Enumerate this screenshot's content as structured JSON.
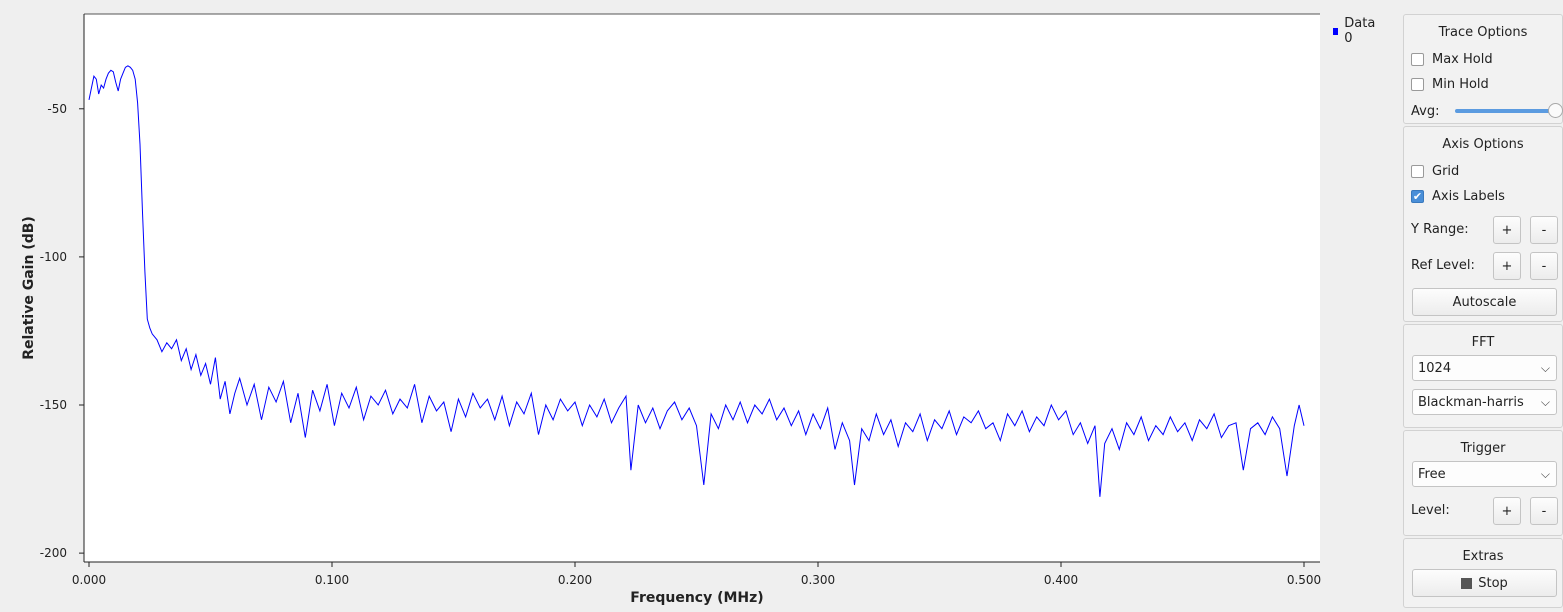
{
  "legend": {
    "label": "Data 0",
    "color": "#0000ff"
  },
  "chart_data": {
    "type": "line",
    "title": "",
    "xlabel": "Frequency (MHz)",
    "ylabel": "Relative Gain (dB)",
    "xlim": [
      0.0,
      0.5
    ],
    "ylim": [
      -203,
      -18
    ],
    "xticks": [
      "0.000",
      "0.100",
      "0.200",
      "0.300",
      "0.400",
      "0.500"
    ],
    "yticks": [
      "-50",
      "-100",
      "-150",
      "-200"
    ],
    "grid": false,
    "series": [
      {
        "name": "Data 0",
        "color": "#0000ff",
        "points": [
          [
            0.0,
            -47
          ],
          [
            0.001,
            -43
          ],
          [
            0.002,
            -39
          ],
          [
            0.003,
            -40
          ],
          [
            0.004,
            -45
          ],
          [
            0.005,
            -42
          ],
          [
            0.006,
            -43
          ],
          [
            0.007,
            -40
          ],
          [
            0.008,
            -38
          ],
          [
            0.009,
            -37
          ],
          [
            0.01,
            -37.5
          ],
          [
            0.011,
            -41
          ],
          [
            0.012,
            -44
          ],
          [
            0.013,
            -40
          ],
          [
            0.014,
            -38
          ],
          [
            0.015,
            -36
          ],
          [
            0.016,
            -35.5
          ],
          [
            0.017,
            -36
          ],
          [
            0.018,
            -37
          ],
          [
            0.019,
            -40
          ],
          [
            0.02,
            -48
          ],
          [
            0.021,
            -62
          ],
          [
            0.022,
            -85
          ],
          [
            0.023,
            -105
          ],
          [
            0.024,
            -121
          ],
          [
            0.025,
            -124
          ],
          [
            0.026,
            -126
          ],
          [
            0.028,
            -128
          ],
          [
            0.03,
            -132
          ],
          [
            0.032,
            -129
          ],
          [
            0.034,
            -131
          ],
          [
            0.036,
            -128
          ],
          [
            0.038,
            -135
          ],
          [
            0.04,
            -131
          ],
          [
            0.042,
            -138
          ],
          [
            0.044,
            -133
          ],
          [
            0.046,
            -140
          ],
          [
            0.048,
            -136
          ],
          [
            0.05,
            -143
          ],
          [
            0.052,
            -134
          ],
          [
            0.054,
            -148
          ],
          [
            0.056,
            -142
          ],
          [
            0.058,
            -153
          ],
          [
            0.06,
            -146
          ],
          [
            0.062,
            -141
          ],
          [
            0.065,
            -150
          ],
          [
            0.068,
            -143
          ],
          [
            0.071,
            -155
          ],
          [
            0.074,
            -144
          ],
          [
            0.077,
            -149
          ],
          [
            0.08,
            -142
          ],
          [
            0.083,
            -156
          ],
          [
            0.086,
            -146
          ],
          [
            0.089,
            -161
          ],
          [
            0.092,
            -145
          ],
          [
            0.095,
            -152
          ],
          [
            0.098,
            -143
          ],
          [
            0.101,
            -157
          ],
          [
            0.104,
            -146
          ],
          [
            0.107,
            -151
          ],
          [
            0.11,
            -144
          ],
          [
            0.113,
            -155
          ],
          [
            0.116,
            -147
          ],
          [
            0.119,
            -150
          ],
          [
            0.122,
            -145
          ],
          [
            0.125,
            -153
          ],
          [
            0.128,
            -148
          ],
          [
            0.131,
            -151
          ],
          [
            0.134,
            -143
          ],
          [
            0.137,
            -156
          ],
          [
            0.14,
            -147
          ],
          [
            0.143,
            -152
          ],
          [
            0.146,
            -149
          ],
          [
            0.149,
            -159
          ],
          [
            0.152,
            -148
          ],
          [
            0.155,
            -154
          ],
          [
            0.158,
            -146
          ],
          [
            0.161,
            -151
          ],
          [
            0.164,
            -148
          ],
          [
            0.167,
            -155
          ],
          [
            0.17,
            -147
          ],
          [
            0.173,
            -157
          ],
          [
            0.176,
            -149
          ],
          [
            0.179,
            -153
          ],
          [
            0.182,
            -146
          ],
          [
            0.185,
            -160
          ],
          [
            0.188,
            -150
          ],
          [
            0.191,
            -155
          ],
          [
            0.194,
            -148
          ],
          [
            0.197,
            -152
          ],
          [
            0.2,
            -149
          ],
          [
            0.203,
            -157
          ],
          [
            0.206,
            -150
          ],
          [
            0.209,
            -154
          ],
          [
            0.212,
            -148
          ],
          [
            0.215,
            -156
          ],
          [
            0.218,
            -151
          ],
          [
            0.221,
            -147
          ],
          [
            0.223,
            -172
          ],
          [
            0.226,
            -150
          ],
          [
            0.229,
            -156
          ],
          [
            0.232,
            -151
          ],
          [
            0.235,
            -158
          ],
          [
            0.238,
            -152
          ],
          [
            0.241,
            -149
          ],
          [
            0.244,
            -155
          ],
          [
            0.247,
            -151
          ],
          [
            0.25,
            -157
          ],
          [
            0.253,
            -177
          ],
          [
            0.256,
            -153
          ],
          [
            0.259,
            -158
          ],
          [
            0.262,
            -150
          ],
          [
            0.265,
            -155
          ],
          [
            0.268,
            -149
          ],
          [
            0.271,
            -156
          ],
          [
            0.274,
            -150
          ],
          [
            0.277,
            -153
          ],
          [
            0.28,
            -148
          ],
          [
            0.283,
            -155
          ],
          [
            0.286,
            -151
          ],
          [
            0.289,
            -157
          ],
          [
            0.292,
            -152
          ],
          [
            0.295,
            -160
          ],
          [
            0.298,
            -153
          ],
          [
            0.301,
            -158
          ],
          [
            0.304,
            -151
          ],
          [
            0.307,
            -165
          ],
          [
            0.31,
            -156
          ],
          [
            0.313,
            -162
          ],
          [
            0.315,
            -177
          ],
          [
            0.318,
            -158
          ],
          [
            0.321,
            -162
          ],
          [
            0.324,
            -153
          ],
          [
            0.327,
            -160
          ],
          [
            0.33,
            -155
          ],
          [
            0.333,
            -164
          ],
          [
            0.336,
            -156
          ],
          [
            0.339,
            -159
          ],
          [
            0.342,
            -153
          ],
          [
            0.345,
            -162
          ],
          [
            0.348,
            -155
          ],
          [
            0.351,
            -158
          ],
          [
            0.354,
            -152
          ],
          [
            0.357,
            -160
          ],
          [
            0.36,
            -154
          ],
          [
            0.363,
            -156
          ],
          [
            0.366,
            -152
          ],
          [
            0.369,
            -158
          ],
          [
            0.372,
            -156
          ],
          [
            0.375,
            -162
          ],
          [
            0.378,
            -153
          ],
          [
            0.381,
            -157
          ],
          [
            0.384,
            -152
          ],
          [
            0.387,
            -159
          ],
          [
            0.39,
            -154
          ],
          [
            0.393,
            -157
          ],
          [
            0.396,
            -150
          ],
          [
            0.399,
            -155
          ],
          [
            0.402,
            -152
          ],
          [
            0.405,
            -160
          ],
          [
            0.408,
            -156
          ],
          [
            0.411,
            -163
          ],
          [
            0.414,
            -157
          ],
          [
            0.416,
            -181
          ],
          [
            0.418,
            -163
          ],
          [
            0.421,
            -158
          ],
          [
            0.424,
            -165
          ],
          [
            0.427,
            -156
          ],
          [
            0.43,
            -160
          ],
          [
            0.433,
            -154
          ],
          [
            0.436,
            -162
          ],
          [
            0.439,
            -157
          ],
          [
            0.442,
            -160
          ],
          [
            0.445,
            -154
          ],
          [
            0.448,
            -159
          ],
          [
            0.451,
            -156
          ],
          [
            0.454,
            -162
          ],
          [
            0.457,
            -155
          ],
          [
            0.46,
            -158
          ],
          [
            0.463,
            -153
          ],
          [
            0.466,
            -161
          ],
          [
            0.469,
            -157
          ],
          [
            0.472,
            -156
          ],
          [
            0.475,
            -172
          ],
          [
            0.478,
            -158
          ],
          [
            0.481,
            -156
          ],
          [
            0.484,
            -160
          ],
          [
            0.487,
            -154
          ],
          [
            0.49,
            -158
          ],
          [
            0.493,
            -174
          ],
          [
            0.496,
            -157
          ],
          [
            0.498,
            -150
          ],
          [
            0.5,
            -157
          ]
        ]
      }
    ]
  },
  "panel": {
    "trace_options": {
      "title": "Trace Options",
      "max_hold": {
        "label": "Max Hold",
        "checked": false
      },
      "min_hold": {
        "label": "Min Hold",
        "checked": false
      },
      "avg_label": "Avg:",
      "avg_value": 1.0
    },
    "axis_options": {
      "title": "Axis Options",
      "grid": {
        "label": "Grid",
        "checked": false
      },
      "axis_labels": {
        "label": "Axis Labels",
        "checked": true
      },
      "y_range_label": "Y Range:",
      "ref_level_label": "Ref Level:",
      "plus": "+",
      "minus": "-",
      "autoscale_label": "Autoscale"
    },
    "fft": {
      "title": "FFT",
      "size_value": "1024",
      "window_value": "Blackman-harris"
    },
    "trigger": {
      "title": "Trigger",
      "mode_value": "Free",
      "level_label": "Level:",
      "plus": "+",
      "minus": "-"
    },
    "extras": {
      "title": "Extras",
      "stop_label": "Stop"
    }
  }
}
